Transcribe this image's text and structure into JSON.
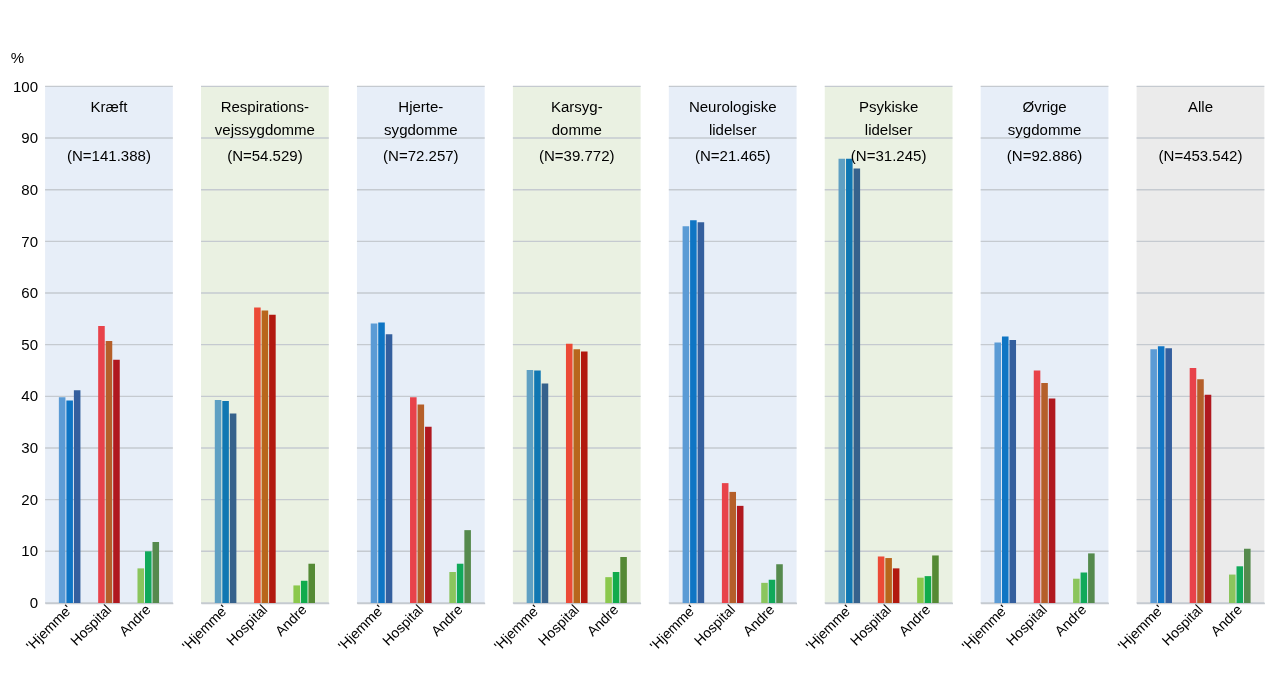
{
  "chart_data": [
    {
      "type": "bar",
      "title": "Kræft",
      "subtitle": "(N=141.388)",
      "ylabel": "%",
      "categories": [
        "'Hjemme'",
        "Hospital",
        "Andre"
      ],
      "ylim": [
        0,
        100
      ],
      "yticks": [
        0,
        10,
        20,
        30,
        40,
        50,
        60,
        70,
        80,
        90,
        100
      ],
      "grid": "y",
      "bands": [
        {
          "axis": "y",
          "from": 0,
          "to": 100,
          "color": "#e7eef8"
        }
      ],
      "series": [
        {
          "colors": [
            "#5b9bd5",
            "#e8424a",
            "#8bc55d"
          ],
          "values": [
            39.8,
            53.6,
            6.7
          ]
        },
        {
          "colors": [
            "#0f75c4",
            "#b55f2a",
            "#11a95a"
          ],
          "values": [
            39.2,
            50.7,
            10.0
          ]
        },
        {
          "colors": [
            "#345f9e",
            "#b0181f",
            "#558a4d"
          ],
          "values": [
            41.2,
            47.1,
            11.8
          ]
        }
      ]
    },
    {
      "type": "bar",
      "title": "Respirations-\nvejssygdomme",
      "subtitle": "(N=54.529)",
      "categories": [
        "'Hjemme'",
        "Hospital",
        "Andre"
      ],
      "ylim": [
        0,
        100
      ],
      "yticks": [
        0,
        10,
        20,
        30,
        40,
        50,
        60,
        70,
        80,
        90,
        100
      ],
      "grid": "y",
      "tick_labels": "x",
      "bands": [
        {
          "axis": "y",
          "from": 0,
          "to": 100,
          "color": "#eaf1e2"
        }
      ],
      "series": [
        {
          "colors": [
            "#5fa0c3",
            "#ec4a36",
            "#8bc84c"
          ],
          "values": [
            39.3,
            57.2,
            3.4
          ]
        },
        {
          "colors": [
            "#1077b2",
            "#b8661c",
            "#11ab4c"
          ],
          "values": [
            39.1,
            56.6,
            4.3
          ]
        },
        {
          "colors": [
            "#36628c",
            "#b2190f",
            "#558a35"
          ],
          "values": [
            36.7,
            55.8,
            7.6
          ]
        }
      ]
    },
    {
      "type": "bar",
      "title": "Hjerte-\nsygdomme",
      "subtitle": "(N=72.257)",
      "categories": [
        "'Hjemme'",
        "Hospital",
        "Andre"
      ],
      "ylim": [
        0,
        100
      ],
      "yticks": [
        0,
        10,
        20,
        30,
        40,
        50,
        60,
        70,
        80,
        90,
        100
      ],
      "grid": "y",
      "tick_labels": "x",
      "bands": [
        {
          "axis": "y",
          "from": 0,
          "to": 100,
          "color": "#e7eef8"
        }
      ],
      "series": [
        {
          "colors": [
            "#5b9bd5",
            "#e8424a",
            "#8bc55d"
          ],
          "values": [
            54.1,
            39.8,
            6.0
          ]
        },
        {
          "colors": [
            "#0f75c4",
            "#b55f2a",
            "#11a95a"
          ],
          "values": [
            54.3,
            38.4,
            7.6
          ]
        },
        {
          "colors": [
            "#345f9e",
            "#b0181f",
            "#558a4d"
          ],
          "values": [
            52.0,
            34.1,
            14.1
          ]
        }
      ]
    },
    {
      "type": "bar",
      "title": "Karsyg-\ndomme",
      "subtitle": "(N=39.772)",
      "categories": [
        "'Hjemme'",
        "Hospital",
        "Andre"
      ],
      "ylim": [
        0,
        100
      ],
      "yticks": [
        0,
        10,
        20,
        30,
        40,
        50,
        60,
        70,
        80,
        90,
        100
      ],
      "grid": "y",
      "tick_labels": "x",
      "bands": [
        {
          "axis": "y",
          "from": 0,
          "to": 100,
          "color": "#eaf1e2"
        }
      ],
      "series": [
        {
          "colors": [
            "#5fa0c3",
            "#ec4a36",
            "#8bc84c"
          ],
          "values": [
            45.1,
            50.2,
            5.0
          ]
        },
        {
          "colors": [
            "#1077b2",
            "#b8661c",
            "#11ab4c"
          ],
          "values": [
            45.0,
            49.1,
            6.0
          ]
        },
        {
          "colors": [
            "#36628c",
            "#b2190f",
            "#558a35"
          ],
          "values": [
            42.5,
            48.7,
            8.9
          ]
        }
      ]
    },
    {
      "type": "bar",
      "title": "Neurologiske\nlidelser",
      "subtitle": "(N=21.465)",
      "categories": [
        "'Hjemme'",
        "Hospital",
        "Andre"
      ],
      "ylim": [
        0,
        100
      ],
      "yticks": [
        0,
        10,
        20,
        30,
        40,
        50,
        60,
        70,
        80,
        90,
        100
      ],
      "grid": "y",
      "tick_labels": "x",
      "bands": [
        {
          "axis": "y",
          "from": 0,
          "to": 100,
          "color": "#e7eef8"
        }
      ],
      "series": [
        {
          "colors": [
            "#5b9bd5",
            "#e8424a",
            "#8bc55d"
          ],
          "values": [
            72.9,
            23.2,
            3.9
          ]
        },
        {
          "colors": [
            "#0f75c4",
            "#b55f2a",
            "#11a95a"
          ],
          "values": [
            74.1,
            21.5,
            4.5
          ]
        },
        {
          "colors": [
            "#345f9e",
            "#b0181f",
            "#558a4d"
          ],
          "values": [
            73.7,
            18.8,
            7.5
          ]
        }
      ]
    },
    {
      "type": "bar",
      "title": "Psykiske\nlidelser",
      "subtitle": "(N=31.245)",
      "categories": [
        "'Hjemme'",
        "Hospital",
        "Andre"
      ],
      "ylim": [
        0,
        100
      ],
      "yticks": [
        0,
        10,
        20,
        30,
        40,
        50,
        60,
        70,
        80,
        90,
        100
      ],
      "grid": "y",
      "tick_labels": "x",
      "bands": [
        {
          "axis": "y",
          "from": 0,
          "to": 100,
          "color": "#eaf1e2"
        }
      ],
      "series": [
        {
          "colors": [
            "#5fa0c3",
            "#ec4a36",
            "#8bc84c"
          ],
          "values": [
            86.0,
            9.0,
            4.9
          ]
        },
        {
          "colors": [
            "#1077b2",
            "#b8661c",
            "#11ab4c"
          ],
          "values": [
            86.0,
            8.7,
            5.2
          ]
        },
        {
          "colors": [
            "#36628c",
            "#b2190f",
            "#558a35"
          ],
          "values": [
            84.1,
            6.7,
            9.2
          ]
        }
      ]
    },
    {
      "type": "bar",
      "title": "Øvrige\nsygdomme",
      "subtitle": "(N=92.886)",
      "categories": [
        "'Hjemme'",
        "Hospital",
        "Andre"
      ],
      "ylim": [
        0,
        100
      ],
      "yticks": [
        0,
        10,
        20,
        30,
        40,
        50,
        60,
        70,
        80,
        90,
        100
      ],
      "grid": "y",
      "tick_labels": "x",
      "bands": [
        {
          "axis": "y",
          "from": 0,
          "to": 100,
          "color": "#e7eef8"
        }
      ],
      "series": [
        {
          "colors": [
            "#5b9bd5",
            "#e8424a",
            "#8bc55d"
          ],
          "values": [
            50.4,
            45.0,
            4.7
          ]
        },
        {
          "colors": [
            "#0f75c4",
            "#b55f2a",
            "#11a95a"
          ],
          "values": [
            51.6,
            42.6,
            5.9
          ]
        },
        {
          "colors": [
            "#345f9e",
            "#b0181f",
            "#558a4d"
          ],
          "values": [
            50.9,
            39.6,
            9.6
          ]
        }
      ]
    },
    {
      "type": "bar",
      "title": "Alle",
      "subtitle": "(N=453.542)",
      "categories": [
        "'Hjemme'",
        "Hospital",
        "Andre"
      ],
      "ylim": [
        0,
        100
      ],
      "yticks": [
        0,
        10,
        20,
        30,
        40,
        50,
        60,
        70,
        80,
        90,
        100
      ],
      "grid": "y",
      "tick_labels": "x",
      "bands": [
        {
          "axis": "y",
          "from": 0,
          "to": 100,
          "color": "#ebebeb"
        }
      ],
      "series": [
        {
          "colors": [
            "#5b9bd5",
            "#e8424a",
            "#8bc55d"
          ],
          "values": [
            49.1,
            45.5,
            5.5
          ]
        },
        {
          "colors": [
            "#0f75c4",
            "#b55f2a",
            "#11a95a"
          ],
          "values": [
            49.7,
            43.3,
            7.1
          ]
        },
        {
          "colors": [
            "#345f9e",
            "#b0181f",
            "#558a4d"
          ],
          "values": [
            49.3,
            40.3,
            10.5
          ]
        }
      ]
    }
  ]
}
